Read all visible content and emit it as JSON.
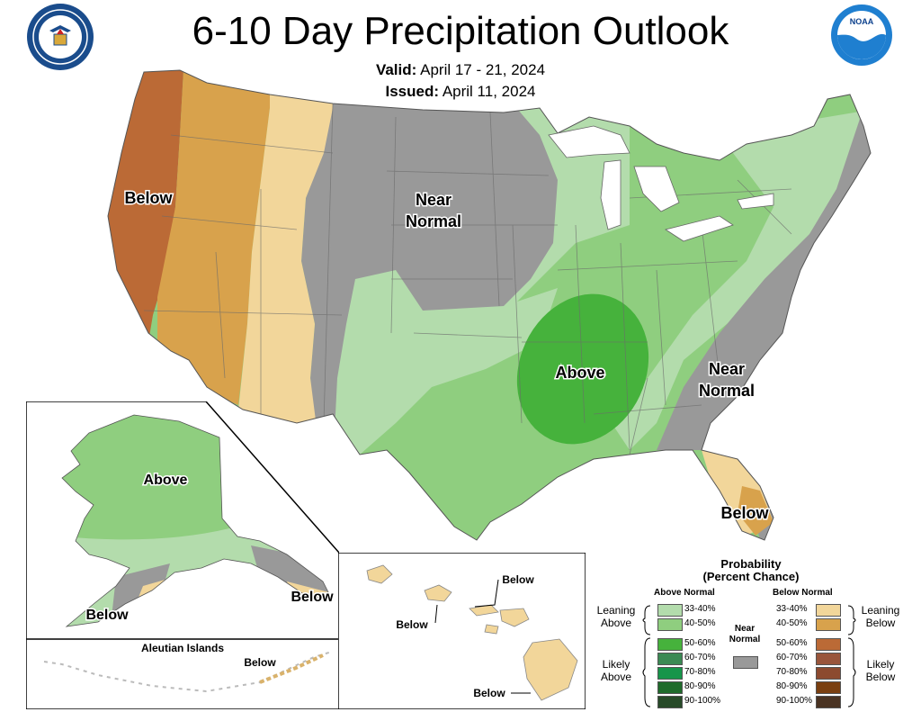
{
  "title": "6-10 Day Precipitation Outlook",
  "valid_label": "Valid:",
  "valid_value": "April 17 - 21, 2024",
  "issued_label": "Issued:",
  "issued_value": "April 11, 2024",
  "map_labels": {
    "west_below": "Below",
    "plains_near_1": "Near",
    "plains_near_2": "Normal",
    "central_above": "Above",
    "east_near_1": "Near",
    "east_near_2": "Normal",
    "florida_below": "Below",
    "alaska_above": "Above",
    "alaska_below_sw": "Below",
    "alaska_below_se": "Below",
    "aleutian_title": "Aleutian Islands",
    "aleutian_below": "Below",
    "hawaii_below_1": "Below",
    "hawaii_below_2": "Below",
    "hawaii_below_3": "Below"
  },
  "legend": {
    "title_1": "Probability",
    "title_2": "(Percent Chance)",
    "above_header": "Above Normal",
    "below_header": "Below Normal",
    "near_1": "Near",
    "near_2": "Normal",
    "leaning_above_1": "Leaning",
    "leaning_above_2": "Above",
    "likely_above_1": "Likely",
    "likely_above_2": "Above",
    "leaning_below_1": "Leaning",
    "leaning_below_2": "Below",
    "likely_below_1": "Likely",
    "likely_below_2": "Below",
    "ranges": [
      "33-40%",
      "40-50%",
      "50-60%",
      "60-70%",
      "70-80%",
      "80-90%",
      "90-100%"
    ],
    "above_colors": [
      "#b3dcac",
      "#8fce7f",
      "#46b23c",
      "#3b8a54",
      "#17954a",
      "#1f6b2b",
      "#274a28"
    ],
    "below_colors": [
      "#f2d69a",
      "#d8a24c",
      "#bb6a36",
      "#99553b",
      "#8c4a2f",
      "#7a3f10",
      "#4a3322"
    ],
    "near_color": "#999999"
  }
}
